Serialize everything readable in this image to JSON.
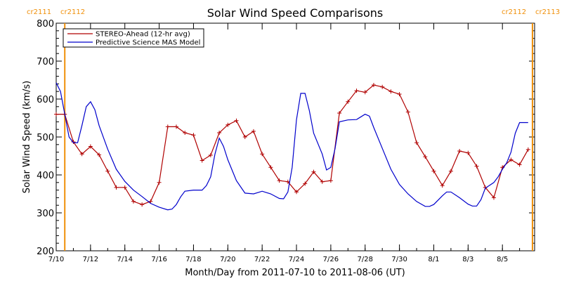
{
  "colors": {
    "stereo": "#b00000",
    "mas": "#0000cc",
    "cr_marker": "#f0900a"
  },
  "chart_data": {
    "type": "line",
    "title": "Solar Wind Speed Comparisons",
    "xlabel": "Month/Day from 2011-07-10 to 2011-08-06 (UT)",
    "ylabel": "Solar Wind Speed (km/s)",
    "xlim": [
      "2011-07-10",
      "2011-08-06"
    ],
    "ylim": [
      200,
      800
    ],
    "x_ticks": [
      "7/10",
      "7/12",
      "7/14",
      "7/16",
      "7/18",
      "7/20",
      "7/22",
      "7/24",
      "7/26",
      "7/28",
      "7/30",
      "8/1",
      "8/3",
      "8/5"
    ],
    "y_ticks": [
      200,
      300,
      400,
      500,
      600,
      700,
      800
    ],
    "legend_position": "top-left",
    "cr_markers": [
      {
        "date": "2011-07-10 12:00",
        "left_label": "cr2111",
        "right_label": "cr2112",
        "side": "left"
      },
      {
        "date": "2011-08-06 18:00",
        "left_label": "cr2112",
        "right_label": "cr2113",
        "side": "right"
      }
    ],
    "series": [
      {
        "name": "STEREO-Ahead (12-hr avg)",
        "color_key": "stereo",
        "markers": true,
        "points": [
          [
            "2011-07-10 00:00",
            560
          ],
          [
            "2011-07-10 12:00",
            560
          ],
          [
            "2011-07-11 00:00",
            487
          ],
          [
            "2011-07-11 12:00",
            455
          ],
          [
            "2011-07-12 00:00",
            475
          ],
          [
            "2011-07-12 12:00",
            453
          ],
          [
            "2011-07-13 00:00",
            410
          ],
          [
            "2011-07-13 12:00",
            367
          ],
          [
            "2011-07-14 00:00",
            367
          ],
          [
            "2011-07-14 12:00",
            330
          ],
          [
            "2011-07-15 00:00",
            322
          ],
          [
            "2011-07-15 12:00",
            330
          ],
          [
            "2011-07-16 00:00",
            380
          ],
          [
            "2011-07-16 12:00",
            527
          ],
          [
            "2011-07-17 00:00",
            527
          ],
          [
            "2011-07-17 12:00",
            511
          ],
          [
            "2011-07-18 00:00",
            505
          ],
          [
            "2011-07-18 12:00",
            438
          ],
          [
            "2011-07-19 00:00",
            452
          ],
          [
            "2011-07-19 12:00",
            511
          ],
          [
            "2011-07-20 00:00",
            532
          ],
          [
            "2011-07-20 12:00",
            543
          ],
          [
            "2011-07-21 00:00",
            500
          ],
          [
            "2011-07-21 12:00",
            515
          ],
          [
            "2011-07-22 00:00",
            455
          ],
          [
            "2011-07-22 12:00",
            420
          ],
          [
            "2011-07-23 00:00",
            385
          ],
          [
            "2011-07-23 12:00",
            382
          ],
          [
            "2011-07-24 00:00",
            355
          ],
          [
            "2011-07-24 12:00",
            377
          ],
          [
            "2011-07-25 00:00",
            408
          ],
          [
            "2011-07-25 12:00",
            382
          ],
          [
            "2011-07-26 00:00",
            385
          ],
          [
            "2011-07-26 12:00",
            563
          ],
          [
            "2011-07-27 00:00",
            593
          ],
          [
            "2011-07-27 12:00",
            622
          ],
          [
            "2011-07-28 00:00",
            618
          ],
          [
            "2011-07-28 12:00",
            637
          ],
          [
            "2011-07-29 00:00",
            632
          ],
          [
            "2011-07-29 12:00",
            620
          ],
          [
            "2011-07-30 00:00",
            613
          ],
          [
            "2011-07-30 12:00",
            566
          ],
          [
            "2011-07-31 00:00",
            485
          ],
          [
            "2011-07-31 12:00",
            448
          ],
          [
            "2011-08-01 00:00",
            410
          ],
          [
            "2011-08-01 12:00",
            372
          ],
          [
            "2011-08-02 00:00",
            410
          ],
          [
            "2011-08-02 12:00",
            463
          ],
          [
            "2011-08-03 00:00",
            458
          ],
          [
            "2011-08-03 12:00",
            423
          ],
          [
            "2011-08-04 00:00",
            367
          ],
          [
            "2011-08-04 12:00",
            340
          ],
          [
            "2011-08-05 00:00",
            420
          ],
          [
            "2011-08-05 12:00",
            440
          ],
          [
            "2011-08-06 00:00",
            427
          ],
          [
            "2011-08-06 12:00",
            467
          ]
        ]
      },
      {
        "name": "Predictive Science MAS Model",
        "color_key": "mas",
        "markers": false,
        "points": [
          [
            "2011-07-10 00:00",
            643
          ],
          [
            "2011-07-10 06:00",
            620
          ],
          [
            "2011-07-10 12:00",
            560
          ],
          [
            "2011-07-10 18:00",
            500
          ],
          [
            "2011-07-11 00:00",
            485
          ],
          [
            "2011-07-11 06:00",
            485
          ],
          [
            "2011-07-11 12:00",
            530
          ],
          [
            "2011-07-11 18:00",
            580
          ],
          [
            "2011-07-12 00:00",
            593
          ],
          [
            "2011-07-12 06:00",
            572
          ],
          [
            "2011-07-12 12:00",
            530
          ],
          [
            "2011-07-13 00:00",
            468
          ],
          [
            "2011-07-13 12:00",
            415
          ],
          [
            "2011-07-14 00:00",
            383
          ],
          [
            "2011-07-14 12:00",
            360
          ],
          [
            "2011-07-15 00:00",
            343
          ],
          [
            "2011-07-15 12:00",
            325
          ],
          [
            "2011-07-16 00:00",
            315
          ],
          [
            "2011-07-16 12:00",
            308
          ],
          [
            "2011-07-16 18:00",
            310
          ],
          [
            "2011-07-17 00:00",
            322
          ],
          [
            "2011-07-17 06:00",
            342
          ],
          [
            "2011-07-17 12:00",
            357
          ],
          [
            "2011-07-18 00:00",
            360
          ],
          [
            "2011-07-18 12:00",
            360
          ],
          [
            "2011-07-18 18:00",
            372
          ],
          [
            "2011-07-19 00:00",
            395
          ],
          [
            "2011-07-19 06:00",
            455
          ],
          [
            "2011-07-19 12:00",
            497
          ],
          [
            "2011-07-19 18:00",
            475
          ],
          [
            "2011-07-20 00:00",
            440
          ],
          [
            "2011-07-20 12:00",
            385
          ],
          [
            "2011-07-21 00:00",
            352
          ],
          [
            "2011-07-21 12:00",
            350
          ],
          [
            "2011-07-22 00:00",
            357
          ],
          [
            "2011-07-22 12:00",
            350
          ],
          [
            "2011-07-23 00:00",
            338
          ],
          [
            "2011-07-23 06:00",
            337
          ],
          [
            "2011-07-23 12:00",
            355
          ],
          [
            "2011-07-23 18:00",
            420
          ],
          [
            "2011-07-24 00:00",
            545
          ],
          [
            "2011-07-24 06:00",
            615
          ],
          [
            "2011-07-24 12:00",
            615
          ],
          [
            "2011-07-24 18:00",
            570
          ],
          [
            "2011-07-25 00:00",
            510
          ],
          [
            "2011-07-25 12:00",
            455
          ],
          [
            "2011-07-25 18:00",
            413
          ],
          [
            "2011-07-26 00:00",
            420
          ],
          [
            "2011-07-26 06:00",
            470
          ],
          [
            "2011-07-26 12:00",
            540
          ],
          [
            "2011-07-27 00:00",
            545
          ],
          [
            "2011-07-27 12:00",
            546
          ],
          [
            "2011-07-28 00:00",
            560
          ],
          [
            "2011-07-28 06:00",
            555
          ],
          [
            "2011-07-28 12:00",
            525
          ],
          [
            "2011-07-29 00:00",
            470
          ],
          [
            "2011-07-29 12:00",
            415
          ],
          [
            "2011-07-30 00:00",
            375
          ],
          [
            "2011-07-30 12:00",
            350
          ],
          [
            "2011-07-31 00:00",
            330
          ],
          [
            "2011-07-31 12:00",
            317
          ],
          [
            "2011-07-31 18:00",
            317
          ],
          [
            "2011-08-01 00:00",
            322
          ],
          [
            "2011-08-01 12:00",
            345
          ],
          [
            "2011-08-01 18:00",
            355
          ],
          [
            "2011-08-02 00:00",
            355
          ],
          [
            "2011-08-02 12:00",
            340
          ],
          [
            "2011-08-03 00:00",
            323
          ],
          [
            "2011-08-03 06:00",
            318
          ],
          [
            "2011-08-03 12:00",
            318
          ],
          [
            "2011-08-03 18:00",
            335
          ],
          [
            "2011-08-04 00:00",
            365
          ],
          [
            "2011-08-04 12:00",
            380
          ],
          [
            "2011-08-04 18:00",
            395
          ],
          [
            "2011-08-05 00:00",
            415
          ],
          [
            "2011-08-05 06:00",
            432
          ],
          [
            "2011-08-05 12:00",
            460
          ],
          [
            "2011-08-05 18:00",
            510
          ],
          [
            "2011-08-06 00:00",
            538
          ],
          [
            "2011-08-06 12:00",
            538
          ]
        ]
      }
    ]
  }
}
